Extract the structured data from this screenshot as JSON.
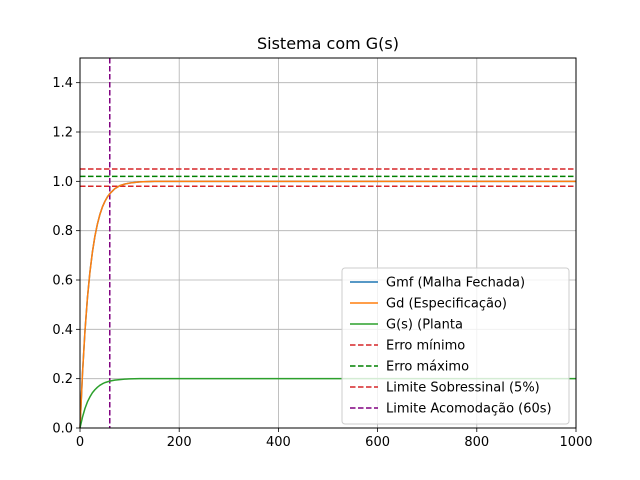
{
  "chart_data": {
    "type": "line",
    "title": "Sistema com G(s)",
    "xlabel": "",
    "ylabel": "",
    "xlim": [
      0,
      1000
    ],
    "ylim": [
      0,
      1.5
    ],
    "x_ticks": [
      0,
      200,
      400,
      600,
      800,
      1000
    ],
    "y_ticks": [
      0.0,
      0.2,
      0.4,
      0.6,
      0.8,
      1.0,
      1.2,
      1.4
    ],
    "x_tick_labels": [
      "0",
      "200",
      "400",
      "600",
      "800",
      "1000"
    ],
    "y_tick_labels": [
      "0.0",
      "0.2",
      "0.4",
      "0.6",
      "0.8",
      "1.0",
      "1.2",
      "1.4"
    ],
    "grid": true,
    "legend_position": "bottom-right",
    "series": [
      {
        "name": "Gmf (Malha Fechada)",
        "color": "#1f77b4",
        "style": "solid",
        "x": [
          0,
          5,
          10,
          15,
          20,
          25,
          30,
          35,
          40,
          45,
          50,
          55,
          60,
          70,
          80,
          90,
          100,
          120,
          150,
          200,
          300,
          400,
          500,
          600,
          700,
          800,
          900,
          1000
        ],
        "y": [
          0,
          0.221,
          0.393,
          0.528,
          0.632,
          0.713,
          0.777,
          0.826,
          0.865,
          0.895,
          0.918,
          0.936,
          0.95,
          0.97,
          0.982,
          0.989,
          0.993,
          0.998,
          1.0,
          1.0,
          1.0,
          1.0,
          1.0,
          1.0,
          1.0,
          1.0,
          1.0,
          1.0
        ]
      },
      {
        "name": "Gd (Especificação)",
        "color": "#ff7f0e",
        "style": "solid",
        "x": [
          0,
          5,
          10,
          15,
          20,
          25,
          30,
          35,
          40,
          45,
          50,
          55,
          60,
          70,
          80,
          90,
          100,
          120,
          150,
          200,
          300,
          400,
          500,
          600,
          700,
          800,
          900,
          1000
        ],
        "y": [
          0,
          0.221,
          0.393,
          0.528,
          0.632,
          0.713,
          0.777,
          0.826,
          0.865,
          0.895,
          0.918,
          0.936,
          0.95,
          0.97,
          0.982,
          0.989,
          0.993,
          0.998,
          1.0,
          1.0,
          1.0,
          1.0,
          1.0,
          1.0,
          1.0,
          1.0,
          1.0,
          1.0
        ]
      },
      {
        "name": "G(s) (Planta",
        "color": "#2ca02c",
        "style": "solid",
        "x": [
          0,
          5,
          10,
          15,
          20,
          25,
          30,
          35,
          40,
          45,
          50,
          60,
          70,
          80,
          90,
          100,
          120,
          150,
          200,
          300,
          400,
          500,
          600,
          700,
          800,
          900,
          1000
        ],
        "y": [
          0,
          0.044,
          0.079,
          0.106,
          0.126,
          0.143,
          0.155,
          0.165,
          0.173,
          0.179,
          0.184,
          0.19,
          0.194,
          0.196,
          0.198,
          0.199,
          0.2,
          0.2,
          0.2,
          0.2,
          0.2,
          0.2,
          0.2,
          0.2,
          0.2,
          0.2,
          0.2
        ]
      }
    ],
    "reference_lines": [
      {
        "name": "Erro mínimo",
        "orientation": "horizontal",
        "value": 0.98,
        "color": "#d62728",
        "style": "dashed"
      },
      {
        "name": "Erro máximo",
        "orientation": "horizontal",
        "value": 1.02,
        "color": "#008000",
        "style": "dashed"
      },
      {
        "name": "Limite Sobressinal (5%)",
        "orientation": "horizontal",
        "value": 1.05,
        "color": "#d62728",
        "style": "dashed"
      },
      {
        "name": "Limite Acomodação (60s)",
        "orientation": "vertical",
        "value": 60,
        "color": "#800080",
        "style": "dashed"
      }
    ]
  }
}
